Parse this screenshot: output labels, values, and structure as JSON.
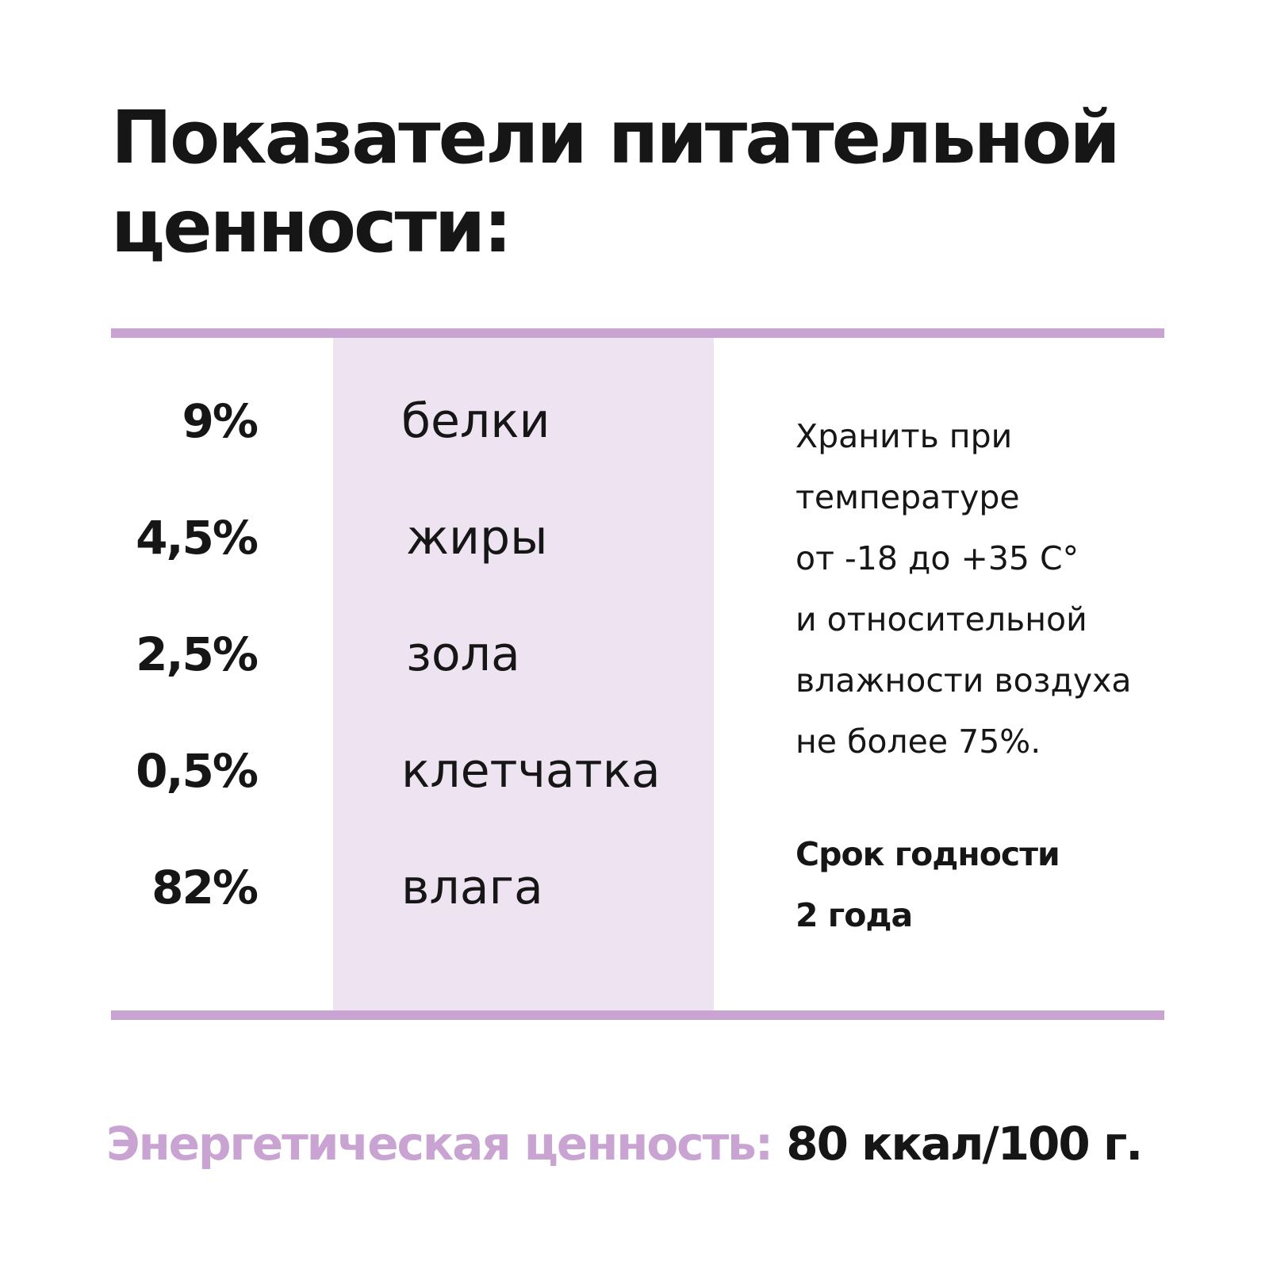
{
  "title": {
    "line1": "Показатели питательной",
    "line2": "ценности:"
  },
  "nutrients": [
    {
      "percent": "9%",
      "name": "белки"
    },
    {
      "percent": "4,5%",
      "name": "жиры"
    },
    {
      "percent": "2,5%",
      "name": "зола"
    },
    {
      "percent": "0,5%",
      "name": "клетчатка"
    },
    {
      "percent": "82%",
      "name": "влага"
    }
  ],
  "storage": {
    "lines": [
      "Хранить при",
      "температуре",
      "от -18 до +35 С°",
      "и относительной",
      "влажности воздуха",
      "не более 75%."
    ]
  },
  "shelf_life": {
    "line1": "Срок годности",
    "line2": "2 года"
  },
  "energy": {
    "label": "Энергетическая ценность:",
    "value": "80 ккал/100 г."
  },
  "colors": {
    "accent": "#c9a4d2",
    "band": "#eee3f1",
    "text": "#161616"
  }
}
